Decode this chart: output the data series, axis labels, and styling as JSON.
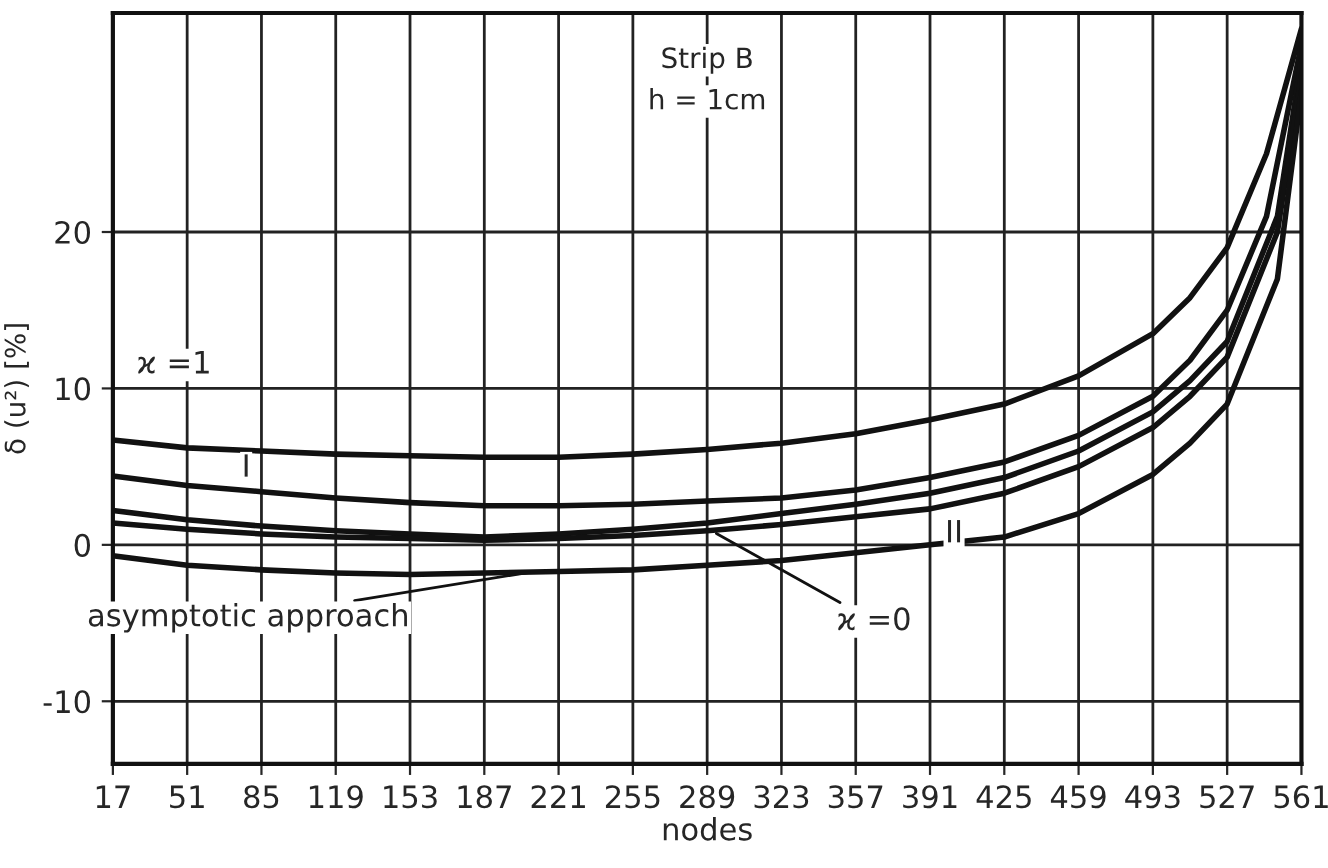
{
  "chart_data": {
    "type": "line",
    "title": "Strip B",
    "subtitle": "h = 1cm",
    "xlabel": "nodes",
    "ylabel": "δ (u²) [%]",
    "xlim": [
      17,
      561
    ],
    "xticks": [
      17,
      51,
      85,
      119,
      153,
      187,
      221,
      255,
      289,
      323,
      357,
      391,
      425,
      459,
      493,
      527,
      561
    ],
    "ylim": [
      -14,
      34
    ],
    "yticks": [
      -10,
      0,
      10,
      20
    ],
    "grid": true,
    "legend": false,
    "marker": "none",
    "line_style": "solid",
    "series": [
      {
        "color": "#111111",
        "x": [
          17,
          51,
          85,
          119,
          153,
          187,
          221,
          255,
          289,
          323,
          357,
          391,
          425,
          459,
          493,
          510,
          527,
          545,
          561
        ],
        "values": [
          6.7,
          6.2,
          6.0,
          5.8,
          5.7,
          5.6,
          5.6,
          5.8,
          6.1,
          6.5,
          7.1,
          8.0,
          9.0,
          10.8,
          13.5,
          15.8,
          19.0,
          25.0,
          33.0
        ]
      },
      {
        "color": "#111111",
        "x": [
          17,
          51,
          85,
          119,
          153,
          187,
          221,
          255,
          289,
          323,
          357,
          391,
          425,
          459,
          493,
          510,
          527,
          545,
          561
        ],
        "values": [
          4.4,
          3.8,
          3.4,
          3.0,
          2.7,
          2.5,
          2.5,
          2.6,
          2.8,
          3.0,
          3.5,
          4.3,
          5.3,
          7.0,
          9.5,
          11.8,
          15.0,
          21.0,
          32.0
        ]
      },
      {
        "color": "#111111",
        "x": [
          17,
          51,
          85,
          119,
          153,
          187,
          221,
          255,
          289,
          323,
          357,
          391,
          425,
          459,
          493,
          510,
          527,
          550,
          561
        ],
        "values": [
          2.2,
          1.6,
          1.2,
          0.9,
          0.7,
          0.5,
          0.7,
          1.0,
          1.4,
          2.0,
          2.6,
          3.3,
          4.3,
          6.0,
          8.5,
          10.5,
          13.0,
          21.0,
          31.0
        ]
      },
      {
        "color": "#111111",
        "x": [
          17,
          51,
          85,
          119,
          153,
          187,
          221,
          255,
          289,
          323,
          357,
          391,
          425,
          459,
          493,
          510,
          527,
          550,
          561
        ],
        "values": [
          1.4,
          1.0,
          0.7,
          0.5,
          0.4,
          0.3,
          0.4,
          0.6,
          0.9,
          1.3,
          1.8,
          2.3,
          3.3,
          5.0,
          7.5,
          9.5,
          12.0,
          20.0,
          30.0
        ]
      },
      {
        "color": "#111111",
        "x": [
          17,
          51,
          85,
          119,
          153,
          187,
          221,
          255,
          289,
          323,
          357,
          391,
          425,
          459,
          493,
          510,
          527,
          550,
          561
        ],
        "values": [
          -0.7,
          -1.3,
          -1.6,
          -1.8,
          -1.9,
          -1.8,
          -1.7,
          -1.6,
          -1.3,
          -1.0,
          -0.5,
          0.0,
          0.5,
          2.0,
          4.5,
          6.5,
          9.0,
          17.0,
          29.0
        ]
      }
    ],
    "annotations": [
      {
        "text": "ϰ =1",
        "x": 45,
        "y": 11.5
      },
      {
        "text": "I",
        "x": 78,
        "y": 4.9
      },
      {
        "text": "II",
        "x": 402,
        "y": 0.7
      },
      {
        "text": "ϰ =0",
        "x": 291,
        "y": 0.9
      },
      {
        "text": "asymptotic approach",
        "x": 210,
        "y": -1.7
      }
    ]
  }
}
